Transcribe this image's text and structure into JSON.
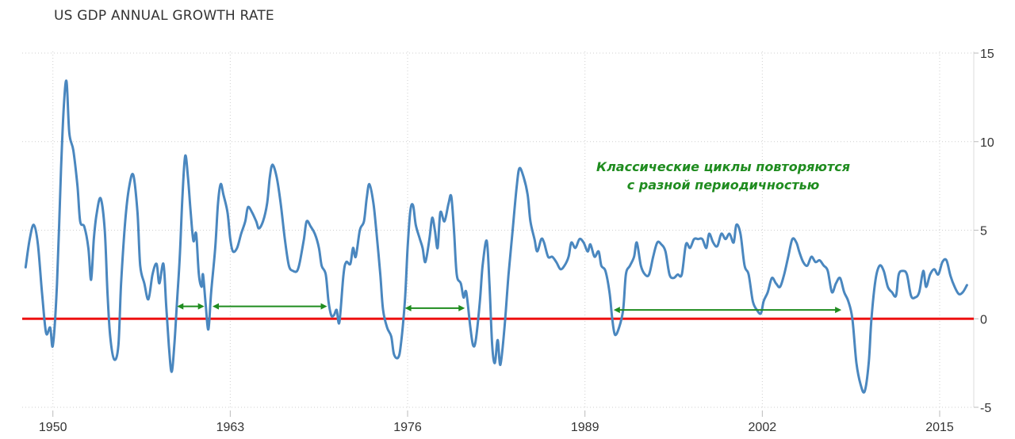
{
  "chart_data": {
    "type": "line",
    "title": "US GDP ANNUAL GROWTH RATE",
    "xlabel": "",
    "ylabel": "",
    "ylim": [
      -5,
      15
    ],
    "yticks": [
      15,
      10,
      5,
      0,
      -5
    ],
    "xlim": [
      1947.75,
      2017.5
    ],
    "xticks": [
      1950,
      1963,
      1976,
      1989,
      2002,
      2015
    ],
    "grid": "dotted",
    "legend": "none",
    "zero_line_color": "#ee1111",
    "line_color": "#4a87bf",
    "annotation_color": "#1f8c1f",
    "annotation_lines": [
      "Классические циклы повторяются",
      "с разной периодичностью"
    ],
    "cycle_arrows": [
      {
        "start": 1959.1,
        "end": 1961.1,
        "y": 0.7
      },
      {
        "start": 1961.7,
        "end": 1970.1,
        "y": 0.7
      },
      {
        "start": 1975.8,
        "end": 1980.2,
        "y": 0.6
      },
      {
        "start": 1991.1,
        "end": 2007.8,
        "y": 0.5
      }
    ],
    "series": [
      {
        "points": [
          [
            1948.0,
            2.9
          ],
          [
            1948.3,
            4.5
          ],
          [
            1948.6,
            5.3
          ],
          [
            1948.9,
            4.2
          ],
          [
            1949.2,
            1.5
          ],
          [
            1949.5,
            -0.8
          ],
          [
            1949.8,
            -0.5
          ],
          [
            1950.0,
            -1.5
          ],
          [
            1950.3,
            2.0
          ],
          [
            1950.6,
            8.5
          ],
          [
            1950.8,
            12.0
          ],
          [
            1951.0,
            13.4
          ],
          [
            1951.2,
            10.5
          ],
          [
            1951.5,
            9.5
          ],
          [
            1951.8,
            7.5
          ],
          [
            1952.0,
            5.5
          ],
          [
            1952.3,
            5.2
          ],
          [
            1952.6,
            4.0
          ],
          [
            1952.8,
            2.2
          ],
          [
            1953.0,
            4.5
          ],
          [
            1953.2,
            5.9
          ],
          [
            1953.5,
            6.8
          ],
          [
            1953.8,
            5.0
          ],
          [
            1954.0,
            1.5
          ],
          [
            1954.2,
            -1.0
          ],
          [
            1954.5,
            -2.3
          ],
          [
            1954.8,
            -1.5
          ],
          [
            1955.0,
            2.0
          ],
          [
            1955.3,
            5.5
          ],
          [
            1955.6,
            7.5
          ],
          [
            1955.9,
            8.1
          ],
          [
            1956.2,
            6.0
          ],
          [
            1956.4,
            3.0
          ],
          [
            1956.7,
            2.0
          ],
          [
            1957.0,
            1.1
          ],
          [
            1957.3,
            2.5
          ],
          [
            1957.6,
            3.1
          ],
          [
            1957.8,
            2.0
          ],
          [
            1958.1,
            3.1
          ],
          [
            1958.3,
            0.8
          ],
          [
            1958.5,
            -1.5
          ],
          [
            1958.7,
            -3.0
          ],
          [
            1958.9,
            -1.5
          ],
          [
            1959.1,
            1.0
          ],
          [
            1959.3,
            3.5
          ],
          [
            1959.5,
            7.0
          ],
          [
            1959.7,
            9.2
          ],
          [
            1959.9,
            8.0
          ],
          [
            1960.1,
            6.0
          ],
          [
            1960.3,
            4.4
          ],
          [
            1960.5,
            4.8
          ],
          [
            1960.7,
            2.5
          ],
          [
            1960.9,
            1.8
          ],
          [
            1961.0,
            2.5
          ],
          [
            1961.2,
            0.8
          ],
          [
            1961.4,
            -0.6
          ],
          [
            1961.6,
            1.5
          ],
          [
            1961.9,
            4.0
          ],
          [
            1962.1,
            6.5
          ],
          [
            1962.3,
            7.6
          ],
          [
            1962.5,
            7.0
          ],
          [
            1962.8,
            6.0
          ],
          [
            1963.0,
            4.5
          ],
          [
            1963.2,
            3.8
          ],
          [
            1963.5,
            4.0
          ],
          [
            1963.8,
            4.8
          ],
          [
            1964.1,
            5.5
          ],
          [
            1964.3,
            6.3
          ],
          [
            1964.6,
            6.0
          ],
          [
            1964.9,
            5.5
          ],
          [
            1965.1,
            5.1
          ],
          [
            1965.4,
            5.5
          ],
          [
            1965.7,
            6.5
          ],
          [
            1965.9,
            8.0
          ],
          [
            1966.1,
            8.7
          ],
          [
            1966.4,
            8.0
          ],
          [
            1966.7,
            6.5
          ],
          [
            1967.0,
            4.5
          ],
          [
            1967.3,
            3.0
          ],
          [
            1967.6,
            2.7
          ],
          [
            1967.9,
            2.7
          ],
          [
            1968.1,
            3.2
          ],
          [
            1968.4,
            4.5
          ],
          [
            1968.6,
            5.5
          ],
          [
            1968.9,
            5.2
          ],
          [
            1969.2,
            4.8
          ],
          [
            1969.5,
            4.0
          ],
          [
            1969.7,
            3.0
          ],
          [
            1970.0,
            2.5
          ],
          [
            1970.2,
            1.0
          ],
          [
            1970.4,
            0.2
          ],
          [
            1970.6,
            0.2
          ],
          [
            1970.8,
            0.5
          ],
          [
            1971.0,
            -0.2
          ],
          [
            1971.3,
            2.5
          ],
          [
            1971.5,
            3.2
          ],
          [
            1971.8,
            3.1
          ],
          [
            1972.0,
            4.0
          ],
          [
            1972.2,
            3.5
          ],
          [
            1972.5,
            5.0
          ],
          [
            1972.8,
            5.5
          ],
          [
            1973.0,
            6.8
          ],
          [
            1973.2,
            7.6
          ],
          [
            1973.5,
            6.5
          ],
          [
            1973.7,
            5.0
          ],
          [
            1974.0,
            2.5
          ],
          [
            1974.2,
            0.5
          ],
          [
            1974.5,
            -0.5
          ],
          [
            1974.8,
            -1.0
          ],
          [
            1975.0,
            -2.0
          ],
          [
            1975.3,
            -2.2
          ],
          [
            1975.5,
            -1.5
          ],
          [
            1975.8,
            1.0
          ],
          [
            1976.0,
            4.0
          ],
          [
            1976.2,
            6.1
          ],
          [
            1976.4,
            6.4
          ],
          [
            1976.6,
            5.3
          ],
          [
            1976.9,
            4.5
          ],
          [
            1977.1,
            4.0
          ],
          [
            1977.3,
            3.2
          ],
          [
            1977.6,
            4.5
          ],
          [
            1977.8,
            5.7
          ],
          [
            1978.0,
            5.0
          ],
          [
            1978.2,
            4.0
          ],
          [
            1978.4,
            6.0
          ],
          [
            1978.7,
            5.5
          ],
          [
            1979.0,
            6.5
          ],
          [
            1979.2,
            6.9
          ],
          [
            1979.4,
            5.0
          ],
          [
            1979.6,
            2.5
          ],
          [
            1979.9,
            2.0
          ],
          [
            1980.1,
            1.2
          ],
          [
            1980.3,
            1.5
          ],
          [
            1980.6,
            -0.5
          ],
          [
            1980.8,
            -1.5
          ],
          [
            1981.0,
            -1.2
          ],
          [
            1981.3,
            1.0
          ],
          [
            1981.5,
            3.0
          ],
          [
            1981.8,
            4.4
          ],
          [
            1982.0,
            2.0
          ],
          [
            1982.2,
            -1.5
          ],
          [
            1982.4,
            -2.5
          ],
          [
            1982.6,
            -1.2
          ],
          [
            1982.8,
            -2.6
          ],
          [
            1983.1,
            -0.5
          ],
          [
            1983.4,
            2.5
          ],
          [
            1983.7,
            5.0
          ],
          [
            1984.0,
            7.5
          ],
          [
            1984.2,
            8.5
          ],
          [
            1984.5,
            8.0
          ],
          [
            1984.8,
            7.0
          ],
          [
            1985.0,
            5.5
          ],
          [
            1985.3,
            4.5
          ],
          [
            1985.5,
            3.8
          ],
          [
            1985.8,
            4.5
          ],
          [
            1986.0,
            4.3
          ],
          [
            1986.3,
            3.5
          ],
          [
            1986.6,
            3.5
          ],
          [
            1986.9,
            3.2
          ],
          [
            1987.2,
            2.8
          ],
          [
            1987.5,
            3.0
          ],
          [
            1987.8,
            3.5
          ],
          [
            1988.0,
            4.3
          ],
          [
            1988.3,
            4.0
          ],
          [
            1988.6,
            4.5
          ],
          [
            1988.9,
            4.3
          ],
          [
            1989.2,
            3.8
          ],
          [
            1989.4,
            4.2
          ],
          [
            1989.7,
            3.5
          ],
          [
            1990.0,
            3.8
          ],
          [
            1990.2,
            3.0
          ],
          [
            1990.5,
            2.7
          ],
          [
            1990.8,
            1.5
          ],
          [
            1991.0,
            0.0
          ],
          [
            1991.2,
            -0.9
          ],
          [
            1991.5,
            -0.5
          ],
          [
            1991.8,
            0.5
          ],
          [
            1992.0,
            2.5
          ],
          [
            1992.3,
            3.0
          ],
          [
            1992.6,
            3.5
          ],
          [
            1992.8,
            4.3
          ],
          [
            1993.1,
            3.0
          ],
          [
            1993.4,
            2.5
          ],
          [
            1993.7,
            2.5
          ],
          [
            1994.0,
            3.5
          ],
          [
            1994.3,
            4.3
          ],
          [
            1994.6,
            4.2
          ],
          [
            1994.9,
            3.8
          ],
          [
            1995.2,
            2.5
          ],
          [
            1995.5,
            2.3
          ],
          [
            1995.8,
            2.5
          ],
          [
            1996.1,
            2.5
          ],
          [
            1996.4,
            4.2
          ],
          [
            1996.7,
            4.0
          ],
          [
            1997.0,
            4.5
          ],
          [
            1997.3,
            4.5
          ],
          [
            1997.6,
            4.5
          ],
          [
            1997.9,
            4.0
          ],
          [
            1998.1,
            4.8
          ],
          [
            1998.4,
            4.3
          ],
          [
            1998.7,
            4.1
          ],
          [
            1999.0,
            4.8
          ],
          [
            1999.3,
            4.5
          ],
          [
            1999.6,
            4.8
          ],
          [
            1999.9,
            4.3
          ],
          [
            2000.1,
            5.3
          ],
          [
            2000.4,
            4.8
          ],
          [
            2000.7,
            3.0
          ],
          [
            2001.0,
            2.5
          ],
          [
            2001.3,
            1.0
          ],
          [
            2001.6,
            0.5
          ],
          [
            2001.9,
            0.3
          ],
          [
            2002.1,
            1.0
          ],
          [
            2002.4,
            1.5
          ],
          [
            2002.7,
            2.3
          ],
          [
            2003.0,
            2.0
          ],
          [
            2003.3,
            1.8
          ],
          [
            2003.6,
            2.5
          ],
          [
            2003.9,
            3.5
          ],
          [
            2004.2,
            4.5
          ],
          [
            2004.5,
            4.3
          ],
          [
            2004.7,
            3.8
          ],
          [
            2005.0,
            3.2
          ],
          [
            2005.3,
            3.0
          ],
          [
            2005.6,
            3.5
          ],
          [
            2005.9,
            3.2
          ],
          [
            2006.2,
            3.3
          ],
          [
            2006.5,
            3.0
          ],
          [
            2006.8,
            2.7
          ],
          [
            2007.1,
            1.5
          ],
          [
            2007.4,
            2.0
          ],
          [
            2007.7,
            2.3
          ],
          [
            2008.0,
            1.5
          ],
          [
            2008.3,
            1.0
          ],
          [
            2008.6,
            0.0
          ],
          [
            2008.9,
            -2.5
          ],
          [
            2009.2,
            -3.7
          ],
          [
            2009.5,
            -4.1
          ],
          [
            2009.8,
            -2.5
          ],
          [
            2010.0,
            0.0
          ],
          [
            2010.3,
            2.2
          ],
          [
            2010.6,
            3.0
          ],
          [
            2010.9,
            2.7
          ],
          [
            2011.2,
            1.8
          ],
          [
            2011.5,
            1.5
          ],
          [
            2011.8,
            1.3
          ],
          [
            2012.0,
            2.5
          ],
          [
            2012.3,
            2.7
          ],
          [
            2012.6,
            2.5
          ],
          [
            2012.9,
            1.3
          ],
          [
            2013.2,
            1.2
          ],
          [
            2013.5,
            1.5
          ],
          [
            2013.8,
            2.7
          ],
          [
            2014.0,
            1.8
          ],
          [
            2014.3,
            2.5
          ],
          [
            2014.6,
            2.8
          ],
          [
            2014.9,
            2.5
          ],
          [
            2015.2,
            3.2
          ],
          [
            2015.5,
            3.3
          ],
          [
            2015.8,
            2.4
          ],
          [
            2016.1,
            1.8
          ],
          [
            2016.4,
            1.4
          ],
          [
            2016.7,
            1.5
          ],
          [
            2017.0,
            1.9
          ]
        ]
      }
    ]
  }
}
